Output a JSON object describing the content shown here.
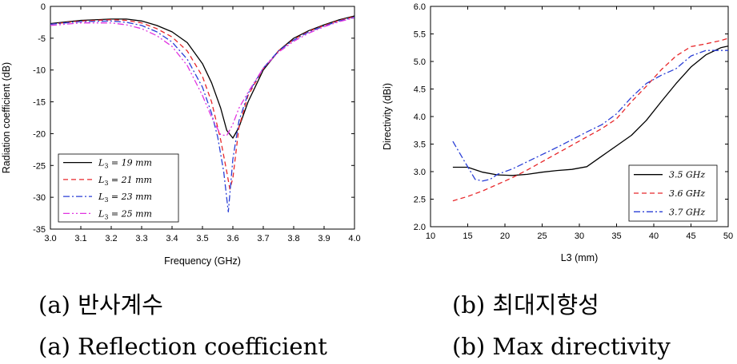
{
  "chart_data": [
    {
      "type": "line",
      "xlabel": "Frequency (GHz)",
      "ylabel": "Radiation coefficient (dB)",
      "xlim": [
        3.0,
        4.0
      ],
      "ylim": [
        -35,
        0
      ],
      "xticks": [
        3.0,
        3.1,
        3.2,
        3.3,
        3.4,
        3.5,
        3.6,
        3.7,
        3.8,
        3.9,
        4.0
      ],
      "yticks": [
        0,
        -5,
        -10,
        -15,
        -20,
        -25,
        -30,
        -35
      ],
      "legend_position": "lower-left",
      "series": [
        {
          "name": "L3 = 19 mm",
          "legend_base": "L",
          "legend_sub": "3",
          "legend_rest": " = 19 mm",
          "color": "#000000",
          "dash": "",
          "x": [
            3.0,
            3.1,
            3.2,
            3.25,
            3.3,
            3.35,
            3.4,
            3.45,
            3.5,
            3.53,
            3.56,
            3.58,
            3.6,
            3.62,
            3.65,
            3.7,
            3.75,
            3.8,
            3.85,
            3.9,
            3.95,
            4.0
          ],
          "y": [
            -2.7,
            -2.2,
            -2.0,
            -2.0,
            -2.3,
            -3.0,
            -4.0,
            -5.7,
            -9.0,
            -12.0,
            -16.0,
            -19.5,
            -20.7,
            -19.0,
            -15.0,
            -10.0,
            -7.0,
            -5.0,
            -3.8,
            -2.9,
            -2.1,
            -1.5
          ]
        },
        {
          "name": "L3 = 21 mm",
          "legend_base": "L",
          "legend_sub": "3",
          "legend_rest": " = 21 mm",
          "color": "#e8272a",
          "dash": "6,4",
          "x": [
            3.0,
            3.1,
            3.2,
            3.25,
            3.3,
            3.35,
            3.4,
            3.45,
            3.5,
            3.53,
            3.56,
            3.58,
            3.59,
            3.6,
            3.62,
            3.65,
            3.7,
            3.75,
            3.8,
            3.85,
            3.9,
            3.95,
            4.0
          ],
          "y": [
            -2.8,
            -2.3,
            -2.1,
            -2.2,
            -2.6,
            -3.5,
            -4.8,
            -7.0,
            -11.0,
            -15.0,
            -21.0,
            -26.0,
            -28.7,
            -27.0,
            -19.0,
            -14.0,
            -9.8,
            -7.0,
            -5.2,
            -3.9,
            -3.0,
            -2.2,
            -1.6
          ]
        },
        {
          "name": "L3 = 23 mm",
          "legend_base": "L",
          "legend_sub": "3",
          "legend_rest": " = 23 mm",
          "color": "#2a3fd6",
          "dash": "8,3,2,3",
          "x": [
            3.0,
            3.1,
            3.2,
            3.25,
            3.3,
            3.35,
            3.4,
            3.45,
            3.5,
            3.53,
            3.55,
            3.57,
            3.585,
            3.6,
            3.62,
            3.65,
            3.7,
            3.75,
            3.8,
            3.85,
            3.9,
            3.95,
            4.0
          ],
          "y": [
            -2.8,
            -2.4,
            -2.3,
            -2.5,
            -3.0,
            -4.0,
            -5.6,
            -8.3,
            -12.7,
            -16.8,
            -20.5,
            -26.0,
            -32.3,
            -24.0,
            -18.0,
            -13.7,
            -9.7,
            -7.0,
            -5.3,
            -4.0,
            -3.1,
            -2.3,
            -1.7
          ]
        },
        {
          "name": "L3 = 25 mm",
          "legend_base": "L",
          "legend_sub": "3",
          "legend_rest": " = 25 mm",
          "color": "#e033e0",
          "dash": "8,3,2,3,2,3",
          "x": [
            3.0,
            3.1,
            3.2,
            3.25,
            3.3,
            3.35,
            3.4,
            3.45,
            3.5,
            3.53,
            3.56,
            3.58,
            3.6,
            3.62,
            3.65,
            3.7,
            3.75,
            3.8,
            3.85,
            3.9,
            3.95,
            4.0
          ],
          "y": [
            -3.0,
            -2.6,
            -2.6,
            -2.9,
            -3.5,
            -4.6,
            -6.3,
            -9.3,
            -14.0,
            -17.4,
            -20.2,
            -20.3,
            -18.5,
            -16.0,
            -13.5,
            -9.7,
            -7.2,
            -5.5,
            -4.2,
            -3.2,
            -2.4,
            -1.8
          ]
        }
      ]
    },
    {
      "type": "line",
      "xlabel": "L3 (mm)",
      "ylabel": "Directivity (dBi)",
      "xlim": [
        10,
        50
      ],
      "ylim": [
        2.0,
        6.0
      ],
      "xticks": [
        10,
        15,
        20,
        25,
        30,
        35,
        40,
        45,
        50
      ],
      "yticks": [
        2.0,
        2.5,
        3.0,
        3.5,
        4.0,
        4.5,
        5.0,
        5.5,
        6.0
      ],
      "legend_position": "lower-right",
      "series": [
        {
          "name": "3.5 GHz",
          "legend_base": "3.5 ",
          "legend_sub": "",
          "legend_rest": "GHz",
          "color": "#000000",
          "dash": "",
          "x": [
            13,
            15,
            17,
            19,
            21,
            23,
            25,
            27,
            29,
            31,
            33,
            35,
            37,
            39,
            41,
            43,
            45,
            47,
            49,
            50
          ],
          "y": [
            3.08,
            3.08,
            2.99,
            2.94,
            2.93,
            2.95,
            2.99,
            3.02,
            3.04,
            3.09,
            3.28,
            3.47,
            3.66,
            3.93,
            4.27,
            4.6,
            4.9,
            5.12,
            5.25,
            5.28
          ]
        },
        {
          "name": "3.6 GHz",
          "legend_base": "3.6 ",
          "legend_sub": "",
          "legend_rest": "GHz",
          "color": "#e8272a",
          "dash": "6,4",
          "x": [
            13,
            15,
            17,
            19,
            21,
            23,
            25,
            27,
            29,
            31,
            33,
            35,
            37,
            39,
            41,
            43,
            45,
            47,
            49,
            50
          ],
          "y": [
            2.47,
            2.55,
            2.65,
            2.77,
            2.89,
            3.03,
            3.18,
            3.33,
            3.48,
            3.63,
            3.78,
            3.96,
            4.27,
            4.55,
            4.85,
            5.1,
            5.27,
            5.32,
            5.38,
            5.42
          ]
        },
        {
          "name": "3.7 GHz",
          "legend_base": "3.7 ",
          "legend_sub": "",
          "legend_rest": "GHz",
          "color": "#2a3fd6",
          "dash": "8,3,2,3",
          "x": [
            13,
            14.5,
            16,
            17,
            18,
            19,
            21,
            23,
            25,
            27,
            29,
            31,
            33,
            35,
            37,
            39,
            41,
            43,
            45,
            47,
            49,
            50
          ],
          "y": [
            3.55,
            3.2,
            2.86,
            2.83,
            2.86,
            2.95,
            3.05,
            3.18,
            3.31,
            3.44,
            3.58,
            3.72,
            3.85,
            4.05,
            4.35,
            4.6,
            4.75,
            4.87,
            5.1,
            5.2,
            5.2,
            5.2
          ]
        }
      ]
    }
  ],
  "captions": {
    "a_korean": "(a)  반사계수",
    "a_english": "(a)  Reflection  coefficient",
    "b_korean": "(b)  최대지향성",
    "b_english": "(b)  Max  directivity"
  }
}
